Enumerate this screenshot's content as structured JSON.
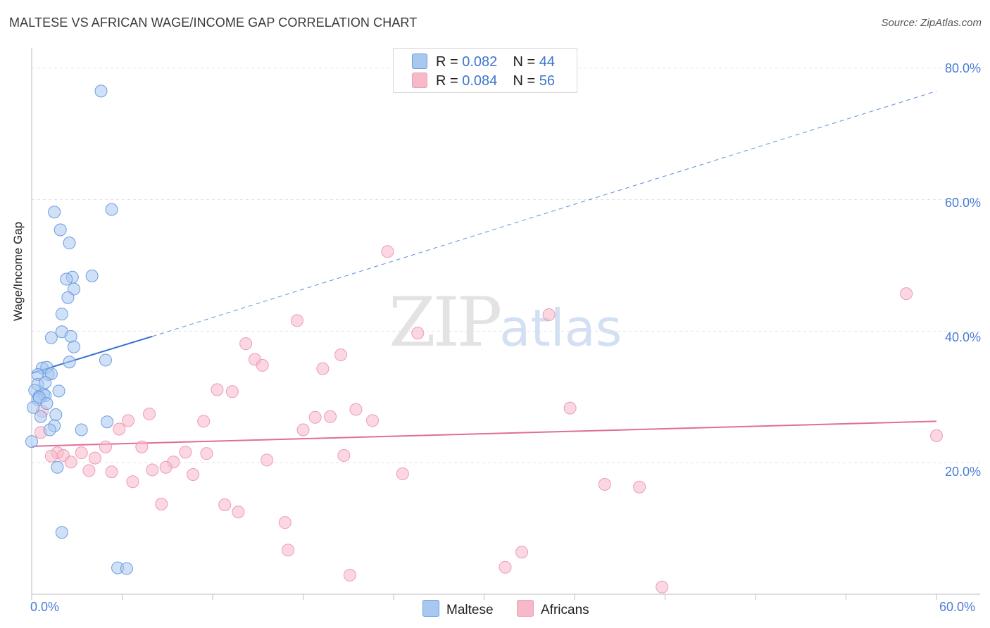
{
  "header": {
    "title": "MALTESE VS AFRICAN WAGE/INCOME GAP CORRELATION CHART",
    "source": "Source: ZipAtlas.com"
  },
  "watermark": {
    "zip": "ZIP",
    "atlas": "atlas"
  },
  "legend": {
    "maltese": {
      "r_label": "R = ",
      "r_value": "0.082",
      "n_label": "N = ",
      "n_value": "44",
      "color": "#a9c8f0"
    },
    "africans": {
      "r_label": "R = ",
      "r_value": "0.084",
      "n_label": "N = ",
      "n_value": "56",
      "color": "#f7b8c9"
    }
  },
  "bottom_legend": {
    "maltese": "Maltese",
    "africans": "Africans"
  },
  "chart_data": {
    "type": "scatter",
    "title": "MALTESE VS AFRICAN WAGE/INCOME GAP CORRELATION CHART",
    "xlabel": "",
    "ylabel": "Wage/Income Gap",
    "xlim": [
      0,
      60
    ],
    "ylim": [
      0,
      80
    ],
    "x_tick_labels": [
      "0.0%",
      "60.0%"
    ],
    "y_ticks": [
      20,
      40,
      60,
      80
    ],
    "y_tick_labels": [
      "20.0%",
      "40.0%",
      "60.0%",
      "80.0%"
    ],
    "grid": true,
    "legend_position": "top-center",
    "series": [
      {
        "name": "Maltese",
        "color": "#6a9de0",
        "fill": "#a9c8f0",
        "r": 0.082,
        "n": 44,
        "trend": {
          "x": [
            0,
            8
          ],
          "y": [
            33.6,
            39.2
          ],
          "extended_to": [
            60,
            76.5
          ]
        },
        "points": [
          [
            4.6,
            76.5
          ],
          [
            5.3,
            58.5
          ],
          [
            1.5,
            58.1
          ],
          [
            1.9,
            55.4
          ],
          [
            2.5,
            53.4
          ],
          [
            4.0,
            48.4
          ],
          [
            2.7,
            48.2
          ],
          [
            2.3,
            47.9
          ],
          [
            2.8,
            46.4
          ],
          [
            2.4,
            45.1
          ],
          [
            2.0,
            42.6
          ],
          [
            2.0,
            39.9
          ],
          [
            1.3,
            39.0
          ],
          [
            2.6,
            39.2
          ],
          [
            2.8,
            37.6
          ],
          [
            4.9,
            35.6
          ],
          [
            2.5,
            35.3
          ],
          [
            0.7,
            34.4
          ],
          [
            1.0,
            34.5
          ],
          [
            1.1,
            33.4
          ],
          [
            1.3,
            33.5
          ],
          [
            0.4,
            33.4
          ],
          [
            0.4,
            31.9
          ],
          [
            0.9,
            32.2
          ],
          [
            1.8,
            30.9
          ],
          [
            0.2,
            31.0
          ],
          [
            0.5,
            30.1
          ],
          [
            0.8,
            30.4
          ],
          [
            0.9,
            30.2
          ],
          [
            0.4,
            29.6
          ],
          [
            0.5,
            29.9
          ],
          [
            1.0,
            29.0
          ],
          [
            0.6,
            27.0
          ],
          [
            1.6,
            27.3
          ],
          [
            1.5,
            25.6
          ],
          [
            1.2,
            25.0
          ],
          [
            3.3,
            25.0
          ],
          [
            5.0,
            26.2
          ],
          [
            0.0,
            23.2
          ],
          [
            1.7,
            19.3
          ],
          [
            2.0,
            9.4
          ],
          [
            5.7,
            4.0
          ],
          [
            6.3,
            3.9
          ],
          [
            0.1,
            28.4
          ]
        ]
      },
      {
        "name": "Africans",
        "color": "#ee9bb5",
        "fill": "#f7b8c9",
        "r": 0.084,
        "n": 56,
        "trend": {
          "x": [
            0,
            60
          ],
          "y": [
            22.5,
            26.3
          ]
        },
        "points": [
          [
            23.6,
            52.1
          ],
          [
            58.0,
            45.7
          ],
          [
            34.3,
            42.5
          ],
          [
            17.6,
            41.6
          ],
          [
            25.6,
            39.7
          ],
          [
            14.2,
            38.1
          ],
          [
            20.5,
            36.4
          ],
          [
            14.8,
            35.7
          ],
          [
            15.3,
            34.8
          ],
          [
            19.3,
            34.3
          ],
          [
            12.3,
            31.1
          ],
          [
            13.3,
            30.8
          ],
          [
            0.7,
            27.8
          ],
          [
            21.5,
            28.1
          ],
          [
            35.7,
            28.3
          ],
          [
            7.8,
            27.4
          ],
          [
            18.8,
            26.9
          ],
          [
            19.8,
            27.0
          ],
          [
            22.6,
            26.4
          ],
          [
            6.4,
            26.4
          ],
          [
            11.4,
            26.3
          ],
          [
            5.8,
            25.1
          ],
          [
            18.0,
            25.0
          ],
          [
            60.0,
            24.1
          ],
          [
            0.6,
            24.6
          ],
          [
            4.9,
            22.4
          ],
          [
            7.3,
            22.4
          ],
          [
            1.7,
            21.5
          ],
          [
            3.3,
            21.5
          ],
          [
            10.2,
            21.6
          ],
          [
            11.6,
            21.4
          ],
          [
            20.7,
            21.1
          ],
          [
            1.3,
            21.0
          ],
          [
            2.1,
            21.1
          ],
          [
            9.4,
            20.1
          ],
          [
            15.6,
            20.4
          ],
          [
            2.6,
            20.1
          ],
          [
            4.2,
            20.7
          ],
          [
            8.9,
            19.3
          ],
          [
            3.8,
            18.8
          ],
          [
            5.3,
            18.6
          ],
          [
            8.0,
            18.9
          ],
          [
            10.7,
            18.2
          ],
          [
            24.6,
            18.3
          ],
          [
            6.7,
            17.1
          ],
          [
            38.0,
            16.7
          ],
          [
            40.3,
            16.3
          ],
          [
            8.6,
            13.7
          ],
          [
            12.8,
            13.6
          ],
          [
            13.7,
            12.5
          ],
          [
            16.8,
            10.9
          ],
          [
            17.0,
            6.7
          ],
          [
            32.5,
            6.4
          ],
          [
            31.4,
            4.1
          ],
          [
            21.1,
            2.9
          ],
          [
            41.8,
            1.1
          ]
        ]
      }
    ]
  }
}
